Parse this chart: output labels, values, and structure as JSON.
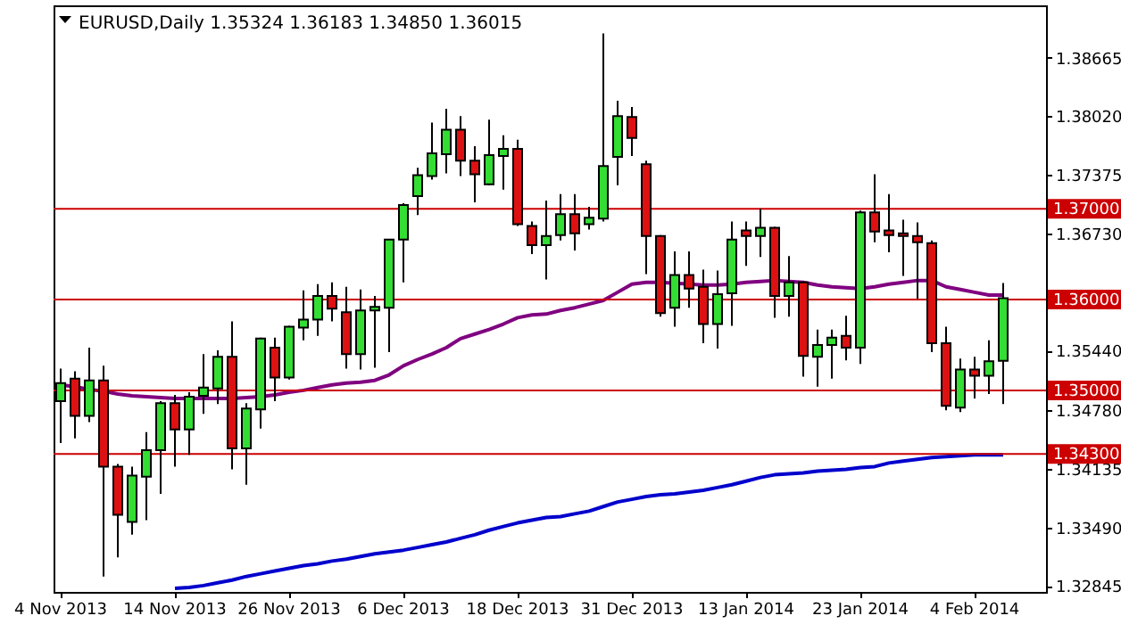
{
  "chart_data": {
    "type": "candlestick",
    "title": "EURUSD,Daily 1.35324 1.36183 1.34850 1.36015",
    "categories": [
      "4 Nov 2013",
      null,
      null,
      null,
      null,
      null,
      null,
      null,
      "14 Nov 2013",
      null,
      null,
      null,
      null,
      null,
      null,
      null,
      "26 Nov 2013",
      null,
      null,
      null,
      null,
      null,
      null,
      null,
      "6 Dec 2013",
      null,
      null,
      null,
      null,
      null,
      null,
      null,
      "18 Dec 2013",
      null,
      null,
      null,
      null,
      null,
      null,
      null,
      "31 Dec 2013",
      null,
      null,
      null,
      null,
      null,
      null,
      null,
      "13 Jan 2014",
      null,
      null,
      null,
      null,
      null,
      null,
      null,
      "23 Jan 2014",
      null,
      null,
      null,
      null,
      null,
      null,
      null,
      "4 Feb 2014",
      null,
      null
    ],
    "ohlc": [
      [
        1.3488,
        1.3524,
        1.3442,
        1.3508
      ],
      [
        1.3513,
        1.3521,
        1.3447,
        1.3472
      ],
      [
        1.3472,
        1.3547,
        1.3465,
        1.3511
      ],
      [
        1.3511,
        1.3527,
        1.3295,
        1.3416
      ],
      [
        1.3416,
        1.3419,
        1.3316,
        1.3363
      ],
      [
        1.3355,
        1.3416,
        1.3341,
        1.3406
      ],
      [
        1.3405,
        1.3454,
        1.3357,
        1.3434
      ],
      [
        1.3434,
        1.3488,
        1.3386,
        1.3486
      ],
      [
        1.3486,
        1.3495,
        1.3416,
        1.3457
      ],
      [
        1.3457,
        1.3498,
        1.3429,
        1.3493
      ],
      [
        1.3494,
        1.354,
        1.3474,
        1.3503
      ],
      [
        1.3502,
        1.3544,
        1.3485,
        1.3537
      ],
      [
        1.3537,
        1.3576,
        1.3413,
        1.3436
      ],
      [
        1.3436,
        1.3486,
        1.3396,
        1.348
      ],
      [
        1.3479,
        1.3558,
        1.3458,
        1.3557
      ],
      [
        1.3547,
        1.3558,
        1.3488,
        1.3514
      ],
      [
        1.3514,
        1.3571,
        1.3512,
        1.357
      ],
      [
        1.3569,
        1.361,
        1.3555,
        1.3578
      ],
      [
        1.3578,
        1.3617,
        1.356,
        1.3604
      ],
      [
        1.3604,
        1.3619,
        1.3576,
        1.359
      ],
      [
        1.3586,
        1.3614,
        1.3524,
        1.354
      ],
      [
        1.354,
        1.3611,
        1.3523,
        1.3588
      ],
      [
        1.3588,
        1.3604,
        1.3525,
        1.3592
      ],
      [
        1.3591,
        1.3666,
        1.3542,
        1.3666
      ],
      [
        1.3666,
        1.3706,
        1.3619,
        1.3704
      ],
      [
        1.3714,
        1.3745,
        1.3693,
        1.3737
      ],
      [
        1.3736,
        1.3795,
        1.3732,
        1.3761
      ],
      [
        1.376,
        1.381,
        1.3739,
        1.3787
      ],
      [
        1.3787,
        1.3802,
        1.3736,
        1.3753
      ],
      [
        1.3753,
        1.3769,
        1.3707,
        1.3738
      ],
      [
        1.3727,
        1.3798,
        1.3726,
        1.3759
      ],
      [
        1.3758,
        1.3781,
        1.3721,
        1.3766
      ],
      [
        1.3766,
        1.3776,
        1.3681,
        1.3683
      ],
      [
        1.3681,
        1.3686,
        1.365,
        1.366
      ],
      [
        1.366,
        1.3709,
        1.3622,
        1.367
      ],
      [
        1.3671,
        1.3716,
        1.3665,
        1.3694
      ],
      [
        1.3694,
        1.3716,
        1.3654,
        1.3673
      ],
      [
        1.3683,
        1.3702,
        1.3677,
        1.369
      ],
      [
        1.3689,
        1.3893,
        1.3686,
        1.3747
      ],
      [
        1.3757,
        1.3819,
        1.3726,
        1.3802
      ],
      [
        1.3801,
        1.3812,
        1.3758,
        1.3778
      ],
      [
        1.3749,
        1.3753,
        1.3628,
        1.367
      ],
      [
        1.367,
        1.3671,
        1.3581,
        1.3585
      ],
      [
        1.3591,
        1.3653,
        1.357,
        1.3627
      ],
      [
        1.3627,
        1.3653,
        1.3591,
        1.3612
      ],
      [
        1.3614,
        1.3633,
        1.3552,
        1.3573
      ],
      [
        1.3573,
        1.3632,
        1.3546,
        1.3606
      ],
      [
        1.3607,
        1.3686,
        1.3571,
        1.3666
      ],
      [
        1.3676,
        1.3686,
        1.3637,
        1.367
      ],
      [
        1.367,
        1.37,
        1.3647,
        1.3679
      ],
      [
        1.3679,
        1.368,
        1.358,
        1.3604
      ],
      [
        1.3604,
        1.3648,
        1.3581,
        1.3619
      ],
      [
        1.3619,
        1.362,
        1.3515,
        1.3538
      ],
      [
        1.3537,
        1.3567,
        1.3504,
        1.355
      ],
      [
        1.355,
        1.3567,
        1.3513,
        1.3558
      ],
      [
        1.356,
        1.3582,
        1.3533,
        1.3547
      ],
      [
        1.3547,
        1.3698,
        1.3529,
        1.3696
      ],
      [
        1.3696,
        1.3738,
        1.3663,
        1.3675
      ],
      [
        1.3676,
        1.3716,
        1.3652,
        1.3671
      ],
      [
        1.3673,
        1.3688,
        1.3626,
        1.367
      ],
      [
        1.367,
        1.3685,
        1.3601,
        1.3663
      ],
      [
        1.3662,
        1.3665,
        1.3542,
        1.3552
      ],
      [
        1.3552,
        1.357,
        1.3478,
        1.3483
      ],
      [
        1.3481,
        1.3535,
        1.3476,
        1.3523
      ],
      [
        1.3523,
        1.3537,
        1.3491,
        1.3516
      ],
      [
        1.3516,
        1.3555,
        1.3496,
        1.3532
      ],
      [
        1.35324,
        1.36183,
        1.3485,
        1.36015
      ]
    ],
    "colors": [
      "#33dd33",
      "#dd1111",
      "#33dd33",
      "#dd1111",
      "#dd1111",
      "#33dd33",
      "#33dd33",
      "#33dd33",
      "#dd1111",
      "#33dd33",
      "#33dd33",
      "#33dd33",
      "#dd1111",
      "#33dd33",
      "#33dd33",
      "#dd1111",
      "#33dd33",
      "#33dd33",
      "#33dd33",
      "#dd1111",
      "#dd1111",
      "#33dd33",
      "#33dd33",
      "#33dd33",
      "#33dd33",
      "#33dd33",
      "#33dd33",
      "#33dd33",
      "#dd1111",
      "#dd1111",
      "#33dd33",
      "#33dd33",
      "#dd1111",
      "#dd1111",
      "#33dd33",
      "#33dd33",
      "#dd1111",
      "#33dd33",
      "#33dd33",
      "#33dd33",
      "#dd1111",
      "#dd1111",
      "#dd1111",
      "#33dd33",
      "#dd1111",
      "#dd1111",
      "#33dd33",
      "#33dd33",
      "#dd1111",
      "#33dd33",
      "#dd1111",
      "#33dd33",
      "#dd1111",
      "#33dd33",
      "#33dd33",
      "#dd1111",
      "#33dd33",
      "#dd1111",
      "#dd1111",
      "#dd1111",
      "#dd1111",
      "#dd1111",
      "#dd1111",
      "#33dd33",
      "#dd1111",
      "#33dd33",
      "#33dd33"
    ],
    "series": [
      {
        "type": "line",
        "color": "#800080",
        "values": [
          1.3506,
          1.3504,
          1.3501,
          1.3499,
          1.3496,
          1.3494,
          1.3493,
          1.3492,
          1.3491,
          1.3491,
          1.3491,
          1.3491,
          1.3491,
          1.3492,
          1.3493,
          1.3495,
          1.3498,
          1.35,
          1.3503,
          1.3506,
          1.3508,
          1.3509,
          1.3511,
          1.3517,
          1.3527,
          1.3534,
          1.354,
          1.3547,
          1.3557,
          1.3562,
          1.3567,
          1.3573,
          1.358,
          1.3583,
          1.3584,
          1.3588,
          1.3591,
          1.3595,
          1.3599,
          1.3608,
          1.3617,
          1.3619,
          1.3619,
          1.3618,
          1.3617,
          1.3616,
          1.3616,
          1.3617,
          1.3619,
          1.362,
          1.3621,
          1.362,
          1.3619,
          1.3616,
          1.3614,
          1.3613,
          1.3612,
          1.3614,
          1.3617,
          1.3619,
          1.3621,
          1.3621,
          1.3614,
          1.3611,
          1.3608,
          1.3605,
          1.3605
        ]
      },
      {
        "type": "line",
        "color": "#0000cc",
        "values": [
          null,
          null,
          null,
          null,
          null,
          null,
          null,
          null,
          1.3282,
          1.3283,
          1.3285,
          1.3288,
          1.3291,
          1.3295,
          1.3298,
          1.3301,
          1.3304,
          1.3307,
          1.3309,
          1.3312,
          1.3314,
          1.3317,
          1.332,
          1.3322,
          1.3324,
          1.3327,
          1.333,
          1.3333,
          1.3337,
          1.3341,
          1.3346,
          1.335,
          1.3354,
          1.3357,
          1.336,
          1.3361,
          1.3364,
          1.3367,
          1.3372,
          1.3377,
          1.338,
          1.3383,
          1.3385,
          1.3386,
          1.3388,
          1.339,
          1.3393,
          1.3396,
          1.34,
          1.3404,
          1.3407,
          1.3408,
          1.3409,
          1.3411,
          1.3412,
          1.3413,
          1.3415,
          1.3416,
          1.342,
          1.3422,
          1.3424,
          1.3426,
          1.3427,
          1.3428,
          1.3429,
          1.3429,
          1.3429
        ]
      }
    ],
    "ylim": [
      1.3278,
      1.3924
    ],
    "yticks": [
      {
        "value": 1.38665,
        "label": "1.38665"
      },
      {
        "value": 1.3802,
        "label": "1.38020"
      },
      {
        "value": 1.37375,
        "label": "1.37375"
      },
      {
        "value": 1.3673,
        "label": "1.36730"
      },
      {
        "value": 1.3544,
        "label": "1.35440"
      },
      {
        "value": 1.3478,
        "label": "1.34780"
      },
      {
        "value": 1.34135,
        "label": "1.34135"
      },
      {
        "value": 1.3349,
        "label": "1.33490"
      },
      {
        "value": 1.32845,
        "label": "1.32845"
      }
    ],
    "ref_lines": [
      {
        "axis": "y",
        "value": 1.37,
        "label": "1.37000",
        "color": "#cc0000"
      },
      {
        "axis": "y",
        "value": 1.36,
        "label": "1.36000",
        "color": "#cc0000"
      },
      {
        "axis": "y",
        "value": 1.35,
        "label": "1.35000",
        "color": "#cc0000"
      },
      {
        "axis": "y",
        "value": 1.343,
        "label": "1.34300",
        "color": "#cc0000"
      }
    ]
  }
}
